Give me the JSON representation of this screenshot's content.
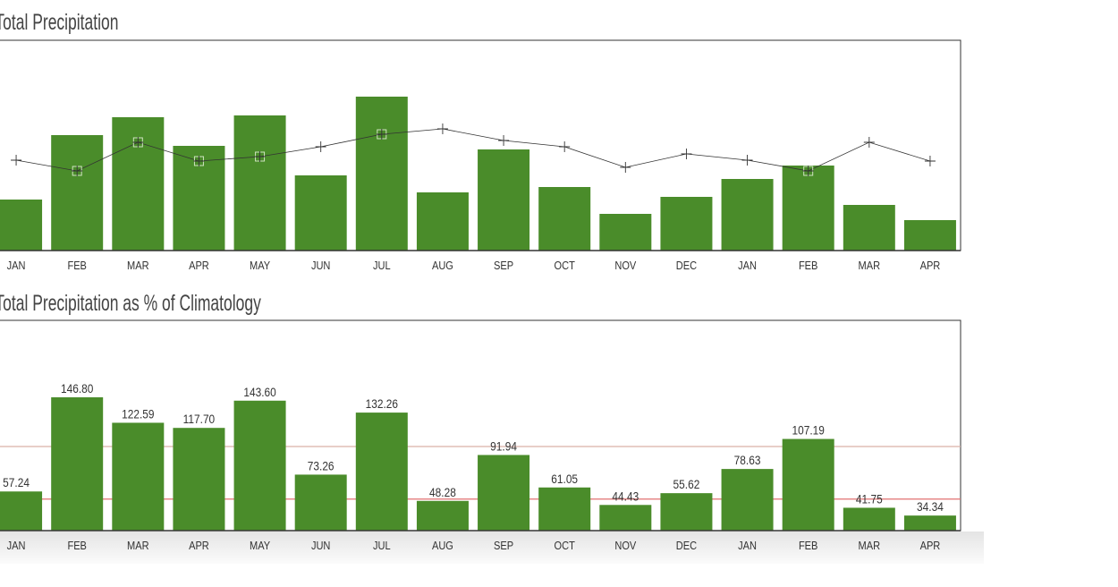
{
  "chart_data": [
    {
      "type": "bar",
      "title": "Total Precipitation",
      "categories": [
        "JAN",
        "FEB",
        "MAR",
        "APR",
        "MAY",
        "JUN",
        "JUL",
        "AUG",
        "SEP",
        "OCT",
        "NOV",
        "DEC",
        "JAN",
        "FEB",
        "MAR",
        "APR"
      ],
      "series": [
        {
          "name": "Precipitation",
          "type": "bar",
          "color": "#4a8c2a",
          "values": [
            57,
            129,
            149,
            117,
            151,
            84,
            172,
            65,
            113,
            71,
            41,
            60,
            80,
            95,
            51,
            34
          ]
        },
        {
          "name": "Climatology",
          "type": "line",
          "color": "#333333",
          "values": [
            101,
            89,
            121,
            100,
            105,
            116,
            130,
            136,
            123,
            116,
            93,
            108,
            101,
            89,
            121,
            100
          ]
        }
      ],
      "ylim": [
        0,
        235
      ]
    },
    {
      "type": "bar",
      "title": "Total Precipitation as % of Climatology",
      "categories": [
        "JAN",
        "FEB",
        "MAR",
        "APR",
        "MAY",
        "JUN",
        "JUL",
        "AUG",
        "SEP",
        "OCT",
        "NOV",
        "DEC",
        "JAN",
        "FEB",
        "MAR",
        "APR"
      ],
      "color": "#4a8c2a",
      "values": [
        57.24,
        146.8,
        122.59,
        117.7,
        143.6,
        73.26,
        132.26,
        48.28,
        91.94,
        61.05,
        44.43,
        55.62,
        78.63,
        107.19,
        41.75,
        34.34
      ],
      "value_labels": [
        "57.24",
        "146.80",
        "122.59",
        "117.70",
        "143.60",
        "73.26",
        "132.26",
        "48.28",
        "91.94",
        "61.05",
        "44.43",
        "55.62",
        "78.63",
        "107.19",
        "41.75",
        "34.34"
      ],
      "reference_lines": [
        {
          "value": 100,
          "color": "#d9b0a8"
        },
        {
          "value": 50,
          "color": "#e07070"
        }
      ],
      "ylim": [
        20,
        220
      ]
    }
  ]
}
